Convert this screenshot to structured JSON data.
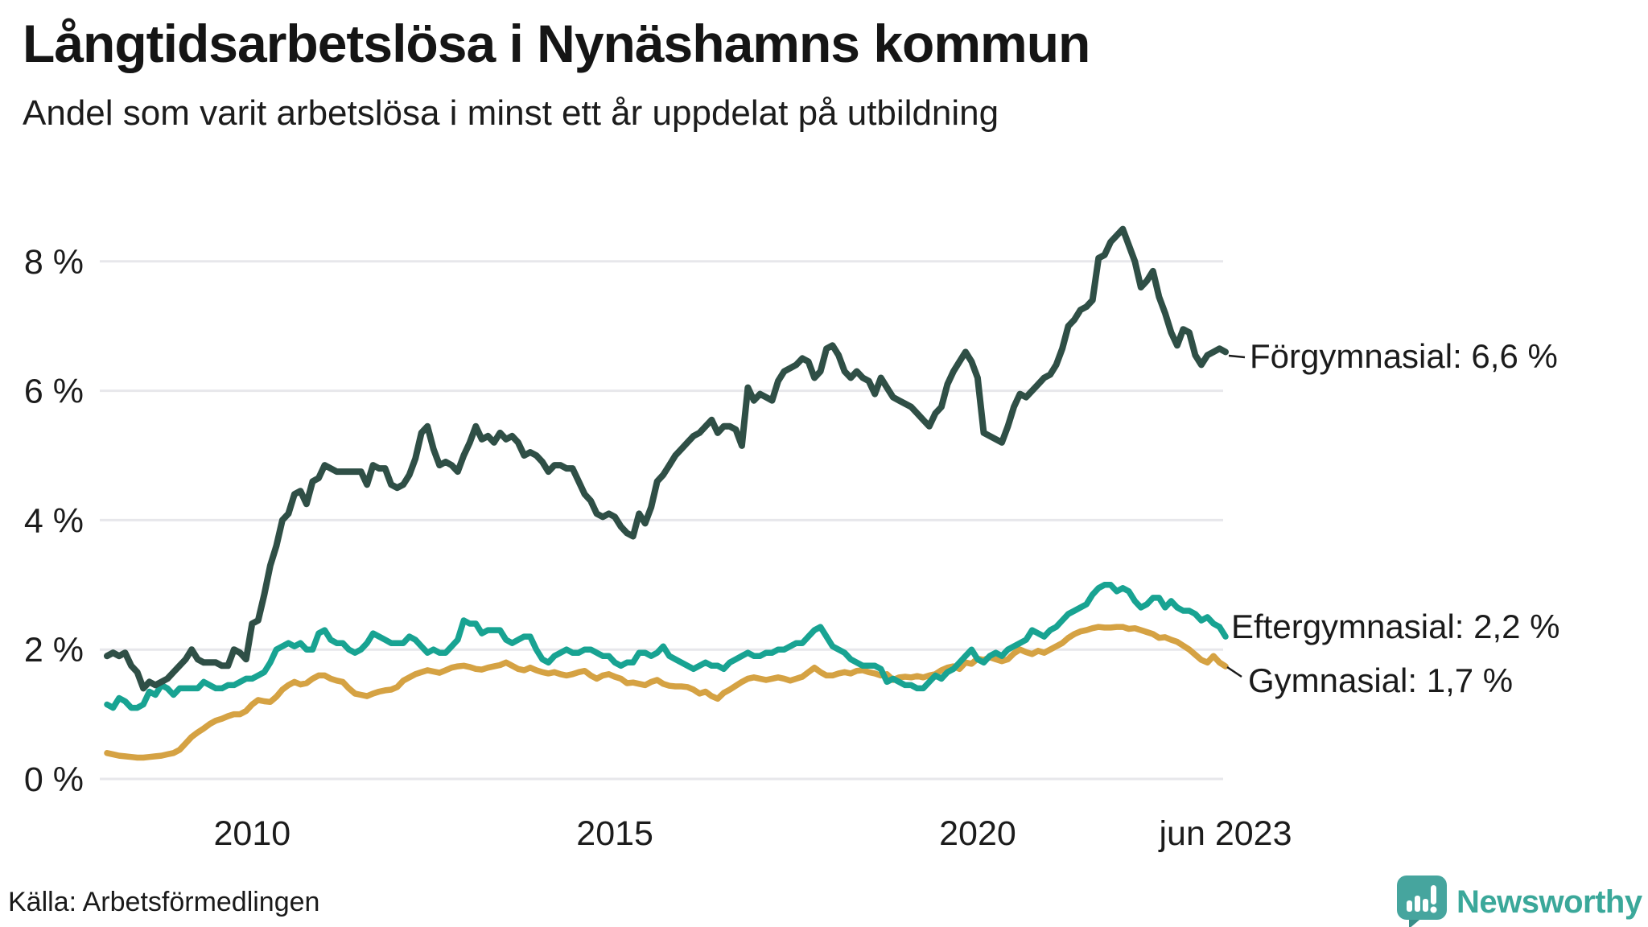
{
  "title": "Långtidsarbetslösa i Nynäshamns kommun",
  "subtitle": "Andel som varit arbetslösa i minst ett år uppdelat på utbildning",
  "source": "Källa: Arbetsförmedlingen",
  "branding": {
    "name": "Newsworthy",
    "icon": "newsworthy-speech-bubble-bar-chart-icon",
    "color": "#3ba89a"
  },
  "chart_data": {
    "type": "line",
    "x_start": "2008-01",
    "x_end": "2023-06",
    "x_interval": "monthly",
    "grid": true,
    "ylim": [
      0,
      8.6
    ],
    "y_ticks": [
      {
        "label": "0 %",
        "value": 0
      },
      {
        "label": "2 %",
        "value": 2
      },
      {
        "label": "4 %",
        "value": 4
      },
      {
        "label": "6 %",
        "value": 6
      },
      {
        "label": "8 %",
        "value": 8
      }
    ],
    "x_ticks": [
      {
        "label": "2010",
        "month_index": 24
      },
      {
        "label": "2015",
        "month_index": 84
      },
      {
        "label": "2020",
        "month_index": 144
      },
      {
        "label": "jun 2023",
        "month_index": 185
      }
    ],
    "series": [
      {
        "name": "Förgymnasial",
        "end_label": "Förgymnasial: 6,6 %",
        "end_value_text": "6,6 %",
        "color": "#2f4f46",
        "values": [
          1.9,
          1.95,
          1.9,
          1.95,
          1.75,
          1.65,
          1.4,
          1.5,
          1.45,
          1.5,
          1.55,
          1.65,
          1.75,
          1.85,
          2.0,
          1.85,
          1.8,
          1.8,
          1.8,
          1.75,
          1.75,
          2.0,
          1.95,
          1.85,
          2.4,
          2.45,
          2.85,
          3.3,
          3.6,
          4.0,
          4.1,
          4.4,
          4.45,
          4.25,
          4.6,
          4.65,
          4.85,
          4.8,
          4.75,
          4.75,
          4.75,
          4.75,
          4.75,
          4.55,
          4.85,
          4.8,
          4.8,
          4.55,
          4.5,
          4.55,
          4.7,
          4.95,
          5.35,
          5.45,
          5.1,
          4.85,
          4.9,
          4.85,
          4.75,
          5.0,
          5.2,
          5.45,
          5.25,
          5.3,
          5.2,
          5.35,
          5.25,
          5.3,
          5.2,
          5.0,
          5.05,
          5.0,
          4.9,
          4.75,
          4.85,
          4.85,
          4.8,
          4.8,
          4.6,
          4.4,
          4.3,
          4.1,
          4.05,
          4.1,
          4.05,
          3.9,
          3.8,
          3.75,
          4.1,
          3.95,
          4.2,
          4.6,
          4.7,
          4.85,
          5.0,
          5.1,
          5.2,
          5.3,
          5.35,
          5.45,
          5.55,
          5.35,
          5.45,
          5.45,
          5.4,
          5.15,
          6.05,
          5.85,
          5.95,
          5.9,
          5.85,
          6.15,
          6.3,
          6.35,
          6.4,
          6.5,
          6.45,
          6.2,
          6.3,
          6.65,
          6.7,
          6.55,
          6.3,
          6.2,
          6.3,
          6.2,
          6.15,
          5.95,
          6.2,
          6.05,
          5.9,
          5.85,
          5.8,
          5.75,
          5.65,
          5.55,
          5.45,
          5.65,
          5.75,
          6.1,
          6.3,
          6.45,
          6.6,
          6.45,
          6.2,
          5.35,
          5.3,
          5.25,
          5.2,
          5.45,
          5.75,
          5.95,
          5.9,
          6.0,
          6.1,
          6.2,
          6.25,
          6.4,
          6.65,
          7.0,
          7.1,
          7.25,
          7.3,
          7.4,
          8.05,
          8.1,
          8.3,
          8.4,
          8.5,
          8.25,
          8.0,
          7.6,
          7.7,
          7.85,
          7.45,
          7.2,
          6.9,
          6.7,
          6.95,
          6.9,
          6.55,
          6.4,
          6.55,
          6.6,
          6.65,
          6.6
        ]
      },
      {
        "name": "Eftergymnasial",
        "end_label": "Eftergymnasial: 2,2 %",
        "end_value_text": "2,2 %",
        "color": "#18a392",
        "values": [
          1.15,
          1.1,
          1.25,
          1.2,
          1.1,
          1.1,
          1.15,
          1.35,
          1.3,
          1.45,
          1.4,
          1.3,
          1.4,
          1.4,
          1.4,
          1.4,
          1.5,
          1.45,
          1.4,
          1.4,
          1.45,
          1.45,
          1.5,
          1.55,
          1.55,
          1.6,
          1.65,
          1.8,
          2.0,
          2.05,
          2.1,
          2.05,
          2.1,
          2.0,
          2.0,
          2.25,
          2.3,
          2.15,
          2.1,
          2.1,
          2.0,
          1.95,
          2.0,
          2.1,
          2.25,
          2.2,
          2.15,
          2.1,
          2.1,
          2.1,
          2.2,
          2.15,
          2.05,
          1.95,
          2.0,
          1.95,
          1.95,
          2.05,
          2.15,
          2.45,
          2.4,
          2.4,
          2.25,
          2.3,
          2.3,
          2.3,
          2.15,
          2.1,
          2.15,
          2.2,
          2.2,
          2.0,
          1.85,
          1.8,
          1.9,
          1.95,
          2.0,
          1.95,
          1.95,
          2.0,
          2.0,
          1.95,
          1.9,
          1.9,
          1.8,
          1.75,
          1.8,
          1.8,
          1.95,
          1.95,
          1.9,
          1.95,
          2.05,
          1.9,
          1.85,
          1.8,
          1.75,
          1.7,
          1.75,
          1.8,
          1.75,
          1.75,
          1.7,
          1.8,
          1.85,
          1.9,
          1.95,
          1.9,
          1.9,
          1.95,
          1.95,
          2.0,
          2.0,
          2.05,
          2.1,
          2.1,
          2.2,
          2.3,
          2.35,
          2.2,
          2.05,
          2.0,
          1.95,
          1.85,
          1.8,
          1.75,
          1.75,
          1.75,
          1.7,
          1.5,
          1.55,
          1.5,
          1.45,
          1.45,
          1.4,
          1.4,
          1.5,
          1.6,
          1.55,
          1.65,
          1.7,
          1.8,
          1.9,
          2.0,
          1.85,
          1.8,
          1.9,
          1.95,
          1.9,
          2.0,
          2.05,
          2.1,
          2.15,
          2.3,
          2.25,
          2.2,
          2.3,
          2.35,
          2.45,
          2.55,
          2.6,
          2.65,
          2.7,
          2.85,
          2.95,
          3.0,
          3.0,
          2.9,
          2.95,
          2.9,
          2.75,
          2.65,
          2.7,
          2.8,
          2.8,
          2.65,
          2.75,
          2.65,
          2.6,
          2.6,
          2.55,
          2.45,
          2.5,
          2.4,
          2.35,
          2.2
        ]
      },
      {
        "name": "Gymnasial",
        "end_label": "Gymnasial: 1,7 %",
        "end_value_text": "1,7 %",
        "color": "#d5a243",
        "values": [
          0.4,
          0.38,
          0.36,
          0.35,
          0.34,
          0.33,
          0.33,
          0.34,
          0.35,
          0.36,
          0.38,
          0.4,
          0.45,
          0.55,
          0.65,
          0.72,
          0.78,
          0.85,
          0.9,
          0.93,
          0.97,
          1.0,
          1.0,
          1.05,
          1.15,
          1.22,
          1.2,
          1.19,
          1.27,
          1.38,
          1.45,
          1.5,
          1.46,
          1.48,
          1.55,
          1.6,
          1.6,
          1.55,
          1.52,
          1.5,
          1.4,
          1.32,
          1.3,
          1.28,
          1.32,
          1.35,
          1.37,
          1.38,
          1.42,
          1.52,
          1.57,
          1.62,
          1.65,
          1.68,
          1.66,
          1.64,
          1.68,
          1.72,
          1.74,
          1.75,
          1.73,
          1.7,
          1.69,
          1.72,
          1.74,
          1.76,
          1.8,
          1.75,
          1.7,
          1.68,
          1.72,
          1.68,
          1.65,
          1.63,
          1.65,
          1.62,
          1.6,
          1.62,
          1.65,
          1.67,
          1.6,
          1.55,
          1.6,
          1.62,
          1.58,
          1.55,
          1.48,
          1.49,
          1.47,
          1.45,
          1.5,
          1.53,
          1.47,
          1.44,
          1.43,
          1.43,
          1.42,
          1.38,
          1.32,
          1.35,
          1.28,
          1.24,
          1.33,
          1.38,
          1.44,
          1.5,
          1.55,
          1.57,
          1.55,
          1.53,
          1.55,
          1.57,
          1.55,
          1.52,
          1.55,
          1.58,
          1.65,
          1.72,
          1.65,
          1.6,
          1.6,
          1.63,
          1.65,
          1.63,
          1.67,
          1.68,
          1.65,
          1.63,
          1.6,
          1.62,
          1.53,
          1.57,
          1.58,
          1.57,
          1.59,
          1.57,
          1.6,
          1.62,
          1.68,
          1.72,
          1.74,
          1.7,
          1.8,
          1.78,
          1.86,
          1.84,
          1.88,
          1.85,
          1.82,
          1.85,
          1.94,
          2.0,
          1.96,
          1.93,
          1.98,
          1.95,
          2.0,
          2.05,
          2.1,
          2.18,
          2.24,
          2.28,
          2.3,
          2.33,
          2.35,
          2.34,
          2.34,
          2.35,
          2.35,
          2.32,
          2.33,
          2.3,
          2.27,
          2.24,
          2.18,
          2.19,
          2.15,
          2.12,
          2.06,
          2.0,
          1.92,
          1.84,
          1.8,
          1.9,
          1.8,
          1.74
        ]
      }
    ]
  }
}
